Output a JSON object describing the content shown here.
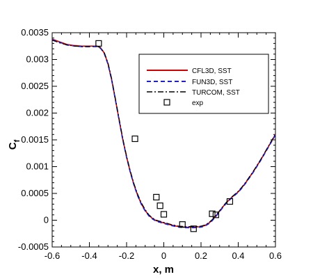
{
  "chart_data": {
    "type": "line",
    "xlabel": "x, m",
    "ylabel": "C",
    "ylabel_sub": "f",
    "xlim": [
      -0.6,
      0.6
    ],
    "ylim": [
      -0.0005,
      0.0035
    ],
    "xticks": [
      -0.6,
      -0.4,
      -0.2,
      0,
      0.2,
      0.4,
      0.6
    ],
    "xtick_labels": [
      "-0.6",
      "-0.4",
      "-0.2",
      "0",
      "0.2",
      "0.4",
      "0.6"
    ],
    "yticks": [
      -0.0005,
      0,
      0.0005,
      0.001,
      0.0015,
      0.002,
      0.0025,
      0.003,
      0.0035
    ],
    "ytick_labels": [
      "-0.0005",
      "0",
      "0.0005",
      "0.001",
      "0.0015",
      "0.002",
      "0.0025",
      "0.003",
      "0.0035"
    ],
    "grid": false,
    "legend_position": "upper-right",
    "series": [
      {
        "name": "CFL3D, SST",
        "style": "solid",
        "color": "#cc0000",
        "points": [
          [
            -0.6,
            0.00338
          ],
          [
            -0.56,
            0.00333
          ],
          [
            -0.52,
            0.00328
          ],
          [
            -0.48,
            0.00326
          ],
          [
            -0.44,
            0.00325
          ],
          [
            -0.4,
            0.00325
          ],
          [
            -0.36,
            0.00325
          ],
          [
            -0.34,
            0.00322
          ],
          [
            -0.32,
            0.00312
          ],
          [
            -0.3,
            0.00292
          ],
          [
            -0.28,
            0.00262
          ],
          [
            -0.26,
            0.00225
          ],
          [
            -0.24,
            0.00187
          ],
          [
            -0.22,
            0.0015
          ],
          [
            -0.2,
            0.00118
          ],
          [
            -0.18,
            0.0009
          ],
          [
            -0.16,
            0.00066
          ],
          [
            -0.14,
            0.00046
          ],
          [
            -0.12,
            0.0003
          ],
          [
            -0.1,
            0.00018
          ],
          [
            -0.08,
            9e-05
          ],
          [
            -0.06,
            3e-05
          ],
          [
            -0.04,
            -1e-05
          ],
          [
            -0.02,
            -3e-05
          ],
          [
            0.0,
            -5e-05
          ],
          [
            0.04,
            -9e-05
          ],
          [
            0.08,
            -0.00012
          ],
          [
            0.12,
            -0.00013
          ],
          [
            0.16,
            -0.00013
          ],
          [
            0.2,
            -0.00012
          ],
          [
            0.22,
            -0.0001
          ],
          [
            0.24,
            -6e-05
          ],
          [
            0.26,
            0.0
          ],
          [
            0.28,
            8e-05
          ],
          [
            0.3,
            0.00017
          ],
          [
            0.32,
            0.00026
          ],
          [
            0.34,
            0.00034
          ],
          [
            0.36,
            0.00041
          ],
          [
            0.38,
            0.00047
          ],
          [
            0.4,
            0.00053
          ],
          [
            0.42,
            0.00061
          ],
          [
            0.44,
            0.0007
          ],
          [
            0.46,
            0.0008
          ],
          [
            0.48,
            0.0009
          ],
          [
            0.5,
            0.00101
          ],
          [
            0.52,
            0.00112
          ],
          [
            0.54,
            0.00124
          ],
          [
            0.56,
            0.00136
          ],
          [
            0.58,
            0.00148
          ],
          [
            0.6,
            0.0016
          ]
        ]
      },
      {
        "name": "FUN3D, SST",
        "style": "dashed",
        "color": "#1f1fd0",
        "points": [
          [
            -0.6,
            0.00337
          ],
          [
            -0.56,
            0.00332
          ],
          [
            -0.52,
            0.00327
          ],
          [
            -0.48,
            0.00325
          ],
          [
            -0.44,
            0.00324
          ],
          [
            -0.4,
            0.00324
          ],
          [
            -0.36,
            0.00324
          ],
          [
            -0.34,
            0.00321
          ],
          [
            -0.32,
            0.00311
          ],
          [
            -0.3,
            0.00291
          ],
          [
            -0.28,
            0.00261
          ],
          [
            -0.26,
            0.00224
          ],
          [
            -0.24,
            0.00186
          ],
          [
            -0.22,
            0.00149
          ],
          [
            -0.2,
            0.00117
          ],
          [
            -0.18,
            0.00089
          ],
          [
            -0.16,
            0.00065
          ],
          [
            -0.14,
            0.00045
          ],
          [
            -0.12,
            0.00029
          ],
          [
            -0.1,
            0.00017
          ],
          [
            -0.08,
            8e-05
          ],
          [
            -0.06,
            2e-05
          ],
          [
            -0.04,
            -2e-05
          ],
          [
            -0.02,
            -4e-05
          ],
          [
            0.0,
            -6e-05
          ],
          [
            0.04,
            -0.0001
          ],
          [
            0.08,
            -0.00013
          ],
          [
            0.12,
            -0.00014
          ],
          [
            0.16,
            -0.00014
          ],
          [
            0.2,
            -0.00013
          ],
          [
            0.22,
            -0.00011
          ],
          [
            0.24,
            -7e-05
          ],
          [
            0.26,
            -1e-05
          ],
          [
            0.28,
            7e-05
          ],
          [
            0.3,
            0.00016
          ],
          [
            0.32,
            0.00025
          ],
          [
            0.34,
            0.00033
          ],
          [
            0.36,
            0.0004
          ],
          [
            0.38,
            0.00046
          ],
          [
            0.4,
            0.00052
          ],
          [
            0.42,
            0.0006
          ],
          [
            0.44,
            0.00069
          ],
          [
            0.46,
            0.00079
          ],
          [
            0.48,
            0.00089
          ],
          [
            0.5,
            0.001
          ],
          [
            0.52,
            0.00111
          ],
          [
            0.54,
            0.00123
          ],
          [
            0.56,
            0.00135
          ],
          [
            0.58,
            0.00147
          ],
          [
            0.6,
            0.00159
          ]
        ]
      },
      {
        "name": "TURCOM, SST",
        "style": "dashdot",
        "color": "#000000",
        "points": [
          [
            -0.6,
            0.00336
          ],
          [
            -0.56,
            0.00331
          ],
          [
            -0.52,
            0.00327
          ],
          [
            -0.48,
            0.00325
          ],
          [
            -0.44,
            0.00324
          ],
          [
            -0.4,
            0.00324
          ],
          [
            -0.36,
            0.00325
          ],
          [
            -0.34,
            0.00322
          ],
          [
            -0.32,
            0.00313
          ],
          [
            -0.3,
            0.00294
          ],
          [
            -0.28,
            0.00264
          ],
          [
            -0.26,
            0.00227
          ],
          [
            -0.24,
            0.00189
          ],
          [
            -0.22,
            0.00152
          ],
          [
            -0.2,
            0.0012
          ],
          [
            -0.18,
            0.00092
          ],
          [
            -0.16,
            0.00068
          ],
          [
            -0.14,
            0.00048
          ],
          [
            -0.12,
            0.00032
          ],
          [
            -0.1,
            0.0002
          ],
          [
            -0.08,
            0.0001
          ],
          [
            -0.06,
            4e-05
          ],
          [
            -0.04,
            0.0
          ],
          [
            -0.02,
            -2e-05
          ],
          [
            0.0,
            -4e-05
          ],
          [
            0.04,
            -8e-05
          ],
          [
            0.08,
            -0.00011
          ],
          [
            0.12,
            -0.00012
          ],
          [
            0.16,
            -0.00012
          ],
          [
            0.2,
            -0.00011
          ],
          [
            0.22,
            -9e-05
          ],
          [
            0.24,
            -5e-05
          ],
          [
            0.26,
            1e-05
          ],
          [
            0.28,
            9e-05
          ],
          [
            0.3,
            0.00018
          ],
          [
            0.32,
            0.00027
          ],
          [
            0.34,
            0.00035
          ],
          [
            0.36,
            0.00042
          ],
          [
            0.38,
            0.00048
          ],
          [
            0.4,
            0.00054
          ],
          [
            0.42,
            0.00062
          ],
          [
            0.44,
            0.00071
          ],
          [
            0.46,
            0.00081
          ],
          [
            0.48,
            0.00091
          ],
          [
            0.5,
            0.00102
          ],
          [
            0.52,
            0.00113
          ],
          [
            0.54,
            0.00125
          ],
          [
            0.56,
            0.00137
          ],
          [
            0.58,
            0.00149
          ],
          [
            0.6,
            0.00161
          ]
        ]
      }
    ],
    "experiment": {
      "name": "exp",
      "marker": "open-square",
      "points": [
        [
          -0.35,
          0.0033
        ],
        [
          -0.155,
          0.00152
        ],
        [
          -0.04,
          0.00043
        ],
        [
          -0.02,
          0.00027
        ],
        [
          0.0,
          0.00011
        ],
        [
          0.1,
          -8e-05
        ],
        [
          0.16,
          -0.00016
        ],
        [
          0.26,
          0.00012
        ],
        [
          0.28,
          0.0001
        ],
        [
          0.355,
          0.00035
        ]
      ]
    }
  }
}
